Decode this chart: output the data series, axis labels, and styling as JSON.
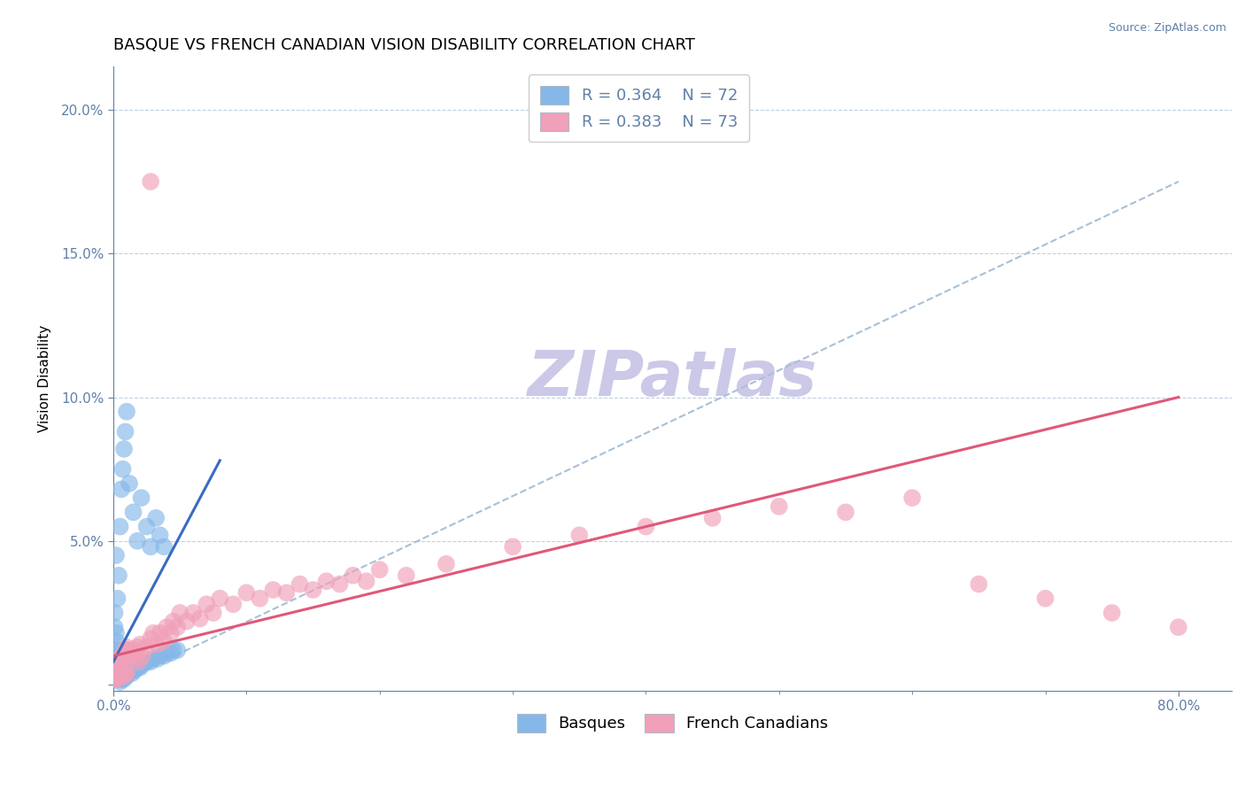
{
  "title": "BASQUE VS FRENCH CANADIAN VISION DISABILITY CORRELATION CHART",
  "source_text": "Source: ZipAtlas.com",
  "ylabel": "Vision Disability",
  "xlim": [
    0.0,
    0.84
  ],
  "ylim": [
    -0.002,
    0.215
  ],
  "xticks": [
    0.0,
    0.8
  ],
  "xticklabels": [
    "0.0%",
    "80.0%"
  ],
  "yticks": [
    0.0,
    0.05,
    0.1,
    0.15,
    0.2
  ],
  "yticklabels": [
    "",
    "5.0%",
    "10.0%",
    "15.0%",
    "20.0%"
  ],
  "basque_color": "#85b8e8",
  "french_color": "#f0a0b8",
  "basque_line_color": "#3a6bbf",
  "french_line_color": "#e05878",
  "dashed_line_color": "#a8c0d8",
  "grid_color": "#c0d0e0",
  "watermark_color": "#ccc8e8",
  "legend_R_basque": "R = 0.364",
  "legend_N_basque": "N = 72",
  "legend_R_french": "R = 0.383",
  "legend_N_french": "N = 73",
  "label_basque": "Basques",
  "label_french": "French Canadians",
  "basque_line_x0": 0.0,
  "basque_line_y0": 0.008,
  "basque_line_x1": 0.08,
  "basque_line_y1": 0.078,
  "french_line_x0": 0.0,
  "french_line_y0": 0.01,
  "french_line_x1": 0.8,
  "french_line_y1": 0.1,
  "dashed_line_x0": 0.0,
  "dashed_line_y0": 0.0,
  "dashed_line_x1": 0.8,
  "dashed_line_y1": 0.175,
  "basque_x": [
    0.001,
    0.001,
    0.002,
    0.002,
    0.002,
    0.003,
    0.003,
    0.003,
    0.003,
    0.003,
    0.004,
    0.004,
    0.004,
    0.004,
    0.005,
    0.005,
    0.005,
    0.005,
    0.006,
    0.006,
    0.006,
    0.007,
    0.007,
    0.007,
    0.008,
    0.008,
    0.008,
    0.009,
    0.009,
    0.01,
    0.01,
    0.011,
    0.012,
    0.013,
    0.014,
    0.015,
    0.016,
    0.018,
    0.02,
    0.022,
    0.025,
    0.028,
    0.03,
    0.033,
    0.035,
    0.038,
    0.04,
    0.043,
    0.045,
    0.048,
    0.001,
    0.001,
    0.002,
    0.002,
    0.003,
    0.003,
    0.004,
    0.005,
    0.006,
    0.007,
    0.008,
    0.009,
    0.01,
    0.012,
    0.015,
    0.018,
    0.021,
    0.025,
    0.028,
    0.032,
    0.035,
    0.038
  ],
  "basque_y": [
    0.02,
    0.009,
    0.015,
    0.008,
    0.004,
    0.012,
    0.007,
    0.004,
    0.003,
    0.002,
    0.01,
    0.006,
    0.003,
    0.002,
    0.009,
    0.005,
    0.003,
    0.001,
    0.008,
    0.005,
    0.002,
    0.007,
    0.004,
    0.002,
    0.007,
    0.004,
    0.002,
    0.006,
    0.003,
    0.006,
    0.003,
    0.005,
    0.005,
    0.005,
    0.004,
    0.005,
    0.005,
    0.006,
    0.006,
    0.007,
    0.008,
    0.008,
    0.009,
    0.009,
    0.01,
    0.01,
    0.011,
    0.011,
    0.012,
    0.012,
    0.025,
    0.01,
    0.045,
    0.018,
    0.03,
    0.012,
    0.038,
    0.055,
    0.068,
    0.075,
    0.082,
    0.088,
    0.095,
    0.07,
    0.06,
    0.05,
    0.065,
    0.055,
    0.048,
    0.058,
    0.052,
    0.048
  ],
  "french_x": [
    0.001,
    0.002,
    0.002,
    0.003,
    0.003,
    0.004,
    0.004,
    0.005,
    0.005,
    0.006,
    0.006,
    0.007,
    0.007,
    0.008,
    0.008,
    0.009,
    0.009,
    0.01,
    0.01,
    0.011,
    0.012,
    0.013,
    0.014,
    0.015,
    0.016,
    0.017,
    0.018,
    0.019,
    0.02,
    0.022,
    0.025,
    0.028,
    0.03,
    0.033,
    0.035,
    0.038,
    0.04,
    0.043,
    0.045,
    0.048,
    0.05,
    0.055,
    0.06,
    0.065,
    0.07,
    0.075,
    0.08,
    0.09,
    0.1,
    0.11,
    0.12,
    0.13,
    0.14,
    0.15,
    0.16,
    0.17,
    0.18,
    0.19,
    0.2,
    0.22,
    0.25,
    0.3,
    0.35,
    0.4,
    0.45,
    0.5,
    0.55,
    0.6,
    0.65,
    0.7,
    0.75,
    0.8,
    0.028
  ],
  "french_y": [
    0.003,
    0.005,
    0.002,
    0.006,
    0.002,
    0.007,
    0.003,
    0.008,
    0.003,
    0.009,
    0.004,
    0.01,
    0.004,
    0.011,
    0.003,
    0.012,
    0.004,
    0.013,
    0.004,
    0.012,
    0.011,
    0.01,
    0.01,
    0.012,
    0.009,
    0.011,
    0.013,
    0.008,
    0.014,
    0.01,
    0.013,
    0.016,
    0.018,
    0.014,
    0.018,
    0.015,
    0.02,
    0.018,
    0.022,
    0.02,
    0.025,
    0.022,
    0.025,
    0.023,
    0.028,
    0.025,
    0.03,
    0.028,
    0.032,
    0.03,
    0.033,
    0.032,
    0.035,
    0.033,
    0.036,
    0.035,
    0.038,
    0.036,
    0.04,
    0.038,
    0.042,
    0.048,
    0.052,
    0.055,
    0.058,
    0.062,
    0.06,
    0.065,
    0.035,
    0.03,
    0.025,
    0.02,
    0.175
  ],
  "title_fontsize": 13,
  "axis_label_fontsize": 11,
  "tick_fontsize": 11,
  "legend_fontsize": 13,
  "watermark_fontsize": 52,
  "background_color": "#ffffff",
  "axis_color": "#6080a8"
}
